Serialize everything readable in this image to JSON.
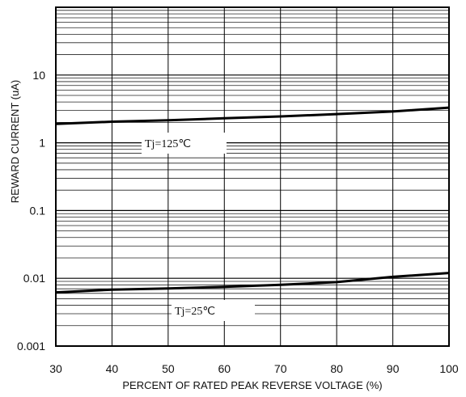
{
  "chart_data": {
    "type": "line",
    "xlabel": "PERCENT OF RATED PEAK REVERSE VOLTAGE (%)",
    "ylabel": "REWARD CURRENT (uA)",
    "xlim": [
      30,
      100
    ],
    "ylim": [
      0.001,
      100
    ],
    "yscale": "log",
    "grid": true,
    "x_ticks": [
      "30",
      "40",
      "50",
      "60",
      "70",
      "80",
      "90",
      "100"
    ],
    "y_ticks": [
      "0.001",
      "0.01",
      "0.1",
      "1",
      "10"
    ],
    "series": [
      {
        "name": "Tj=125℃",
        "x": [
          30,
          40,
          50,
          60,
          70,
          80,
          90,
          100
        ],
        "y": [
          1.9,
          2.05,
          2.15,
          2.3,
          2.45,
          2.65,
          2.9,
          3.3
        ]
      },
      {
        "name": "Tj=25℃",
        "x": [
          30,
          40,
          50,
          60,
          70,
          80,
          90,
          100
        ],
        "y": [
          0.0062,
          0.0068,
          0.0071,
          0.0075,
          0.008,
          0.0088,
          0.0105,
          0.012
        ]
      }
    ],
    "annotations": [
      {
        "text": "Tj=125℃",
        "series": 0
      },
      {
        "text": "Tj=25℃",
        "series": 1
      }
    ]
  }
}
